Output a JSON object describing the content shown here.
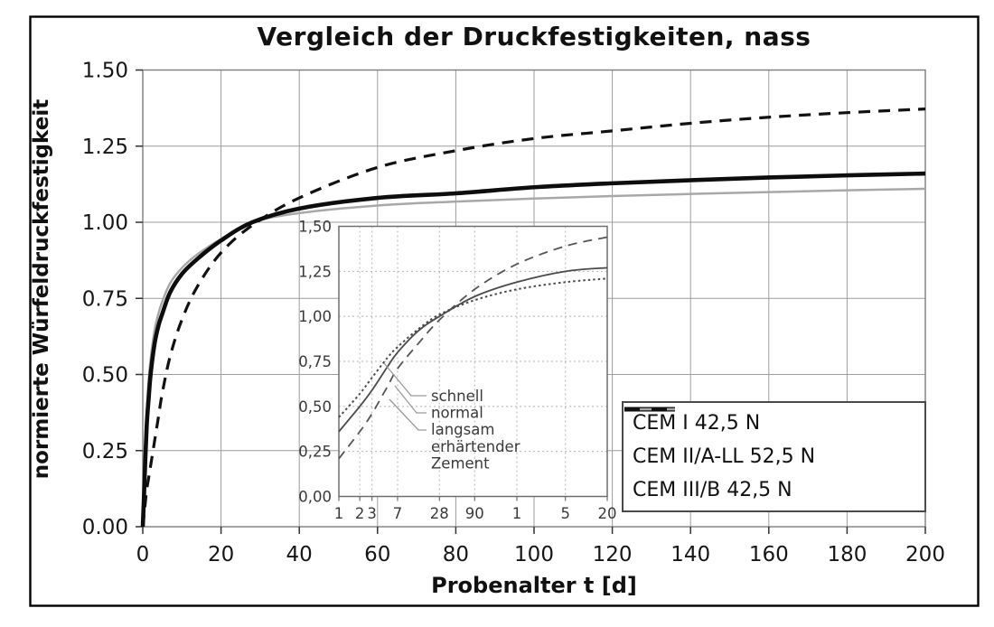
{
  "figure": {
    "title": "Vergleich der Druckfestigkeiten, nass",
    "x_axis_title": "Probenalter t [d]",
    "y_axis_title": "normierte Würfeldruckfestigkeit"
  },
  "legend": {
    "items": [
      {
        "label": "CEM I 42,5 N",
        "style": "solid-thick-black"
      },
      {
        "label": "CEM II/A-LL 52,5 N",
        "style": "solid-thin-gray"
      },
      {
        "label": "CEM III/B 42,5 N",
        "style": "dashed-black"
      }
    ]
  },
  "chart_data": [
    {
      "id": "main",
      "type": "line",
      "title": "Vergleich der Druckfestigkeiten, nass",
      "xlabel": "Probenalter t [d]",
      "ylabel": "normierte Würfeldruckfestigkeit",
      "xlim": [
        0,
        200
      ],
      "ylim": [
        0,
        1.5
      ],
      "grid": true,
      "legend_position": "lower-right-inside",
      "xticks": [
        0,
        20,
        40,
        60,
        80,
        100,
        120,
        140,
        160,
        180,
        200
      ],
      "xtick_labels": [
        "0",
        "20",
        "40",
        "60",
        "80",
        "100",
        "120",
        "140",
        "160",
        "180",
        "200"
      ],
      "yticks": [
        1.5,
        1.25,
        1.0,
        0.75,
        0.5,
        0.25,
        0
      ],
      "ytick_labels": [
        "1.50",
        "1.25",
        "1.00",
        "0.75",
        "0.50",
        "0.25",
        "0.00"
      ],
      "x": [
        0,
        0.25,
        0.5,
        1,
        1.5,
        2,
        3,
        4,
        5,
        7,
        10,
        14,
        20,
        28,
        40,
        60,
        80,
        100,
        120,
        140,
        160,
        180,
        200
      ],
      "series": [
        {
          "name": "CEM I 42,5 N",
          "line": "solid",
          "color": "#0d0d0d",
          "values": [
            0,
            0.08,
            0.17,
            0.33,
            0.42,
            0.5,
            0.6,
            0.66,
            0.7,
            0.77,
            0.83,
            0.88,
            0.94,
            1.0,
            1.045,
            1.08,
            1.095,
            1.115,
            1.128,
            1.138,
            1.147,
            1.154,
            1.16
          ]
        },
        {
          "name": "CEM II/A-LL 52,5 N",
          "line": "solid",
          "color": "#a8a8a8",
          "values": [
            0,
            0.1,
            0.21,
            0.38,
            0.48,
            0.55,
            0.645,
            0.7,
            0.74,
            0.8,
            0.85,
            0.895,
            0.945,
            1.0,
            1.03,
            1.055,
            1.068,
            1.078,
            1.086,
            1.093,
            1.099,
            1.105,
            1.11
          ]
        },
        {
          "name": "CEM III/B 42,5 N",
          "line": "dashed",
          "color": "#111111",
          "values": [
            0,
            0.03,
            0.06,
            0.12,
            0.16,
            0.2,
            0.28,
            0.36,
            0.44,
            0.56,
            0.68,
            0.79,
            0.9,
            0.99,
            1.08,
            1.18,
            1.235,
            1.275,
            1.3,
            1.325,
            1.345,
            1.36,
            1.372
          ]
        }
      ]
    },
    {
      "id": "inset",
      "type": "line",
      "xscale": "log",
      "xlim": [
        1,
        7300
      ],
      "ylim": [
        0,
        1.5
      ],
      "grid": true,
      "xticks": [
        1,
        2,
        3,
        7,
        28,
        90,
        365,
        1825,
        7300
      ],
      "xtick_labels": [
        "1",
        "2",
        "3",
        "7",
        "28",
        "90",
        "1",
        "5",
        "20"
      ],
      "yticks": [
        1.5,
        1.25,
        1.0,
        0.75,
        0.5,
        0.25,
        0
      ],
      "ytick_labels": [
        "1,50",
        "1,25",
        "1,00",
        "0,75",
        "0,50",
        "0,25",
        "0,00"
      ],
      "x": [
        1,
        2,
        3,
        5,
        7,
        14,
        28,
        90,
        365,
        1825,
        7300
      ],
      "series": [
        {
          "name": "langsam erhärtender Zement",
          "line": "dashed",
          "color": "#555555",
          "values": [
            0.21,
            0.36,
            0.46,
            0.61,
            0.71,
            0.85,
            0.98,
            1.15,
            1.29,
            1.39,
            1.44
          ]
        },
        {
          "name": "schnell erhärtender Zement",
          "line": "dotted",
          "color": "#4a4a4a",
          "values": [
            0.44,
            0.57,
            0.66,
            0.77,
            0.83,
            0.93,
            1.01,
            1.09,
            1.15,
            1.19,
            1.21
          ]
        },
        {
          "name": "normal erhärtender Zement",
          "line": "solid",
          "color": "#4a4a4a",
          "values": [
            0.36,
            0.5,
            0.59,
            0.72,
            0.8,
            0.92,
            1.0,
            1.11,
            1.19,
            1.25,
            1.27
          ]
        }
      ],
      "annotation_lines": [
        "schnell",
        "normal",
        "langsam",
        "erhärtender",
        "Zement"
      ]
    }
  ]
}
